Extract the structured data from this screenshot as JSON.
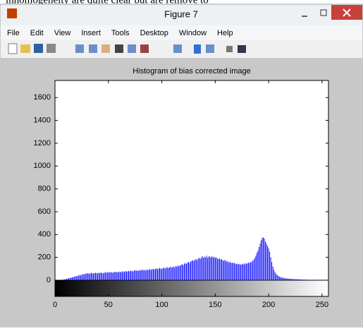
{
  "background_text": "inhomogeneity are quite clear but are remove to",
  "window": {
    "title": "Figure 7",
    "menu": [
      "File",
      "Edit",
      "View",
      "Insert",
      "Tools",
      "Desktop",
      "Window",
      "Help"
    ]
  },
  "chart_data": {
    "type": "bar",
    "title": "Histogram of bias corrected image",
    "color": "#0000ff",
    "xlim": [
      0,
      256
    ],
    "ylim": [
      0,
      1750
    ],
    "xticks": [
      0,
      50,
      100,
      150,
      200,
      250
    ],
    "yticks": [
      0,
      200,
      400,
      600,
      800,
      1000,
      1200,
      1400,
      1600
    ],
    "values": [
      0,
      0,
      0,
      0,
      0,
      0,
      2,
      4,
      6,
      8,
      10,
      12,
      15,
      18,
      20,
      22,
      25,
      28,
      30,
      33,
      35,
      38,
      40,
      45,
      42,
      50,
      48,
      55,
      52,
      60,
      58,
      62,
      55,
      60,
      65,
      58,
      62,
      60,
      66,
      63,
      60,
      65,
      62,
      68,
      64,
      60,
      66,
      70,
      65,
      68,
      70,
      66,
      72,
      68,
      65,
      70,
      74,
      69,
      72,
      68,
      75,
      70,
      73,
      78,
      72,
      76,
      80,
      74,
      78,
      82,
      76,
      85,
      80,
      78,
      84,
      88,
      82,
      86,
      80,
      90,
      85,
      88,
      92,
      86,
      90,
      84,
      95,
      88,
      92,
      98,
      90,
      95,
      100,
      94,
      98,
      105,
      96,
      100,
      108,
      102,
      98,
      105,
      110,
      102,
      108,
      115,
      106,
      112,
      118,
      110,
      115,
      120,
      112,
      125,
      118,
      130,
      122,
      128,
      135,
      140,
      132,
      145,
      150,
      142,
      155,
      160,
      150,
      165,
      170,
      175,
      168,
      180,
      185,
      175,
      190,
      195,
      185,
      200,
      210,
      195,
      205,
      200,
      215,
      195,
      210,
      205,
      200,
      212,
      198,
      205,
      195,
      200,
      190,
      185,
      192,
      180,
      185,
      175,
      170,
      178,
      165,
      170,
      160,
      155,
      162,
      150,
      155,
      148,
      152,
      145,
      140,
      145,
      138,
      142,
      135,
      140,
      145,
      138,
      150,
      142,
      148,
      155,
      150,
      160,
      158,
      170,
      180,
      195,
      215,
      240,
      260,
      290,
      320,
      350,
      370,
      375,
      365,
      340,
      320,
      300,
      280,
      250,
      200,
      160,
      120,
      90,
      70,
      55,
      45,
      38,
      32,
      28,
      25,
      22,
      20,
      18,
      16,
      15,
      14,
      13,
      12,
      11,
      10,
      10,
      9,
      9,
      8,
      8,
      7,
      7,
      6,
      6,
      5,
      5,
      5,
      4,
      4,
      3,
      3,
      3,
      2,
      2,
      2,
      1,
      1,
      1,
      1,
      0,
      0,
      0,
      0,
      0,
      0,
      0,
      0,
      0
    ]
  }
}
